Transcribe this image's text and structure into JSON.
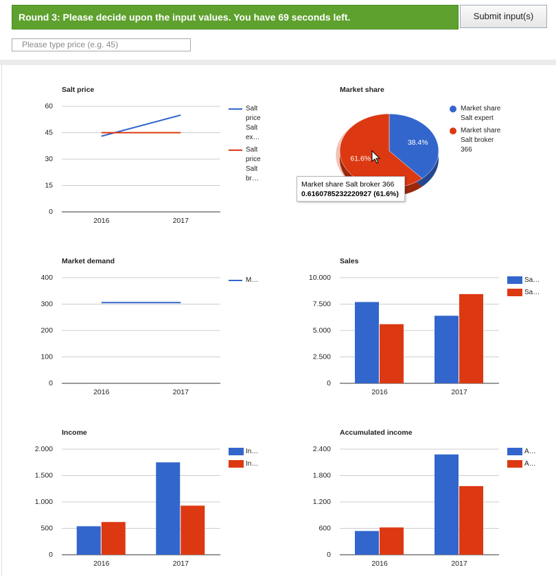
{
  "header": {
    "banner": "Round 3: Please decide upon the input values. You have 69 seconds left.",
    "button": "Submit input(s)",
    "input_placeholder": "Please type price (e.g. 45)"
  },
  "chart_data": [
    {
      "type": "line",
      "title": "Salt price",
      "categories": [
        "2016",
        "2017"
      ],
      "ylim": [
        0,
        60
      ],
      "yticks": [
        0,
        15,
        30,
        45,
        60
      ],
      "grid": true,
      "legend": "right",
      "series": [
        {
          "name": "Salt price Salt ex…",
          "color": "#3366cc",
          "values": [
            43,
            55
          ]
        },
        {
          "name": "Salt price Salt br…",
          "color": "#dc3912",
          "values": [
            45,
            45
          ]
        }
      ]
    },
    {
      "type": "pie",
      "title": "Market share",
      "categories": [
        "Market share Salt expert",
        "Market share Salt broker 366"
      ],
      "values": [
        38.4,
        61.6
      ],
      "value_labels": [
        "38.4%",
        "61.6%"
      ],
      "colors": [
        "#3366cc",
        "#dc3912"
      ],
      "legend": "right",
      "tooltip": {
        "title": "Market share Salt broker 366",
        "text": "0.6160785232220927 (61.6%)"
      }
    },
    {
      "type": "line",
      "title": "Market demand",
      "categories": [
        "2016",
        "2017"
      ],
      "ylim": [
        0,
        400
      ],
      "yticks": [
        0,
        100,
        200,
        300,
        400
      ],
      "grid": true,
      "legend": "right",
      "series": [
        {
          "name": "M…",
          "color": "#3366cc",
          "values": [
            306,
            306
          ]
        }
      ]
    },
    {
      "type": "bar",
      "title": "Sales",
      "categories": [
        "2016",
        "2017"
      ],
      "ylim": [
        0,
        10000
      ],
      "yticks": [
        0,
        {
          "value": 2500,
          "label": "2.500"
        },
        {
          "value": 5000,
          "label": "5.000"
        },
        {
          "value": 7500,
          "label": "7.500"
        },
        {
          "value": 10000,
          "label": "10.000"
        }
      ],
      "grid": true,
      "legend": "right",
      "series": [
        {
          "name": "Sa…",
          "color": "#3366cc",
          "values": [
            7700,
            6400
          ]
        },
        {
          "name": "Sa…",
          "color": "#dc3912",
          "values": [
            5600,
            8450
          ]
        }
      ]
    },
    {
      "type": "bar",
      "title": "Income",
      "categories": [
        "2016",
        "2017"
      ],
      "ylim": [
        0,
        2000
      ],
      "yticks": [
        0,
        500,
        {
          "value": 1000,
          "label": "1.000"
        },
        {
          "value": 1500,
          "label": "1.500"
        },
        {
          "value": 2000,
          "label": "2.000"
        }
      ],
      "grid": true,
      "legend": "right",
      "series": [
        {
          "name": "In…",
          "color": "#3366cc",
          "values": [
            540,
            1750
          ]
        },
        {
          "name": "In…",
          "color": "#dc3912",
          "values": [
            620,
            930
          ]
        }
      ]
    },
    {
      "type": "bar",
      "title": "Accumulated income",
      "categories": [
        "2016",
        "2017"
      ],
      "ylim": [
        0,
        2400
      ],
      "yticks": [
        0,
        600,
        {
          "value": 1200,
          "label": "1.200"
        },
        {
          "value": 1800,
          "label": "1.800"
        },
        {
          "value": 2400,
          "label": "2.400"
        }
      ],
      "grid": true,
      "legend": "right",
      "series": [
        {
          "name": "A…",
          "color": "#3366cc",
          "values": [
            540,
            2280
          ]
        },
        {
          "name": "A…",
          "color": "#dc3912",
          "values": [
            620,
            1560
          ]
        }
      ]
    }
  ]
}
